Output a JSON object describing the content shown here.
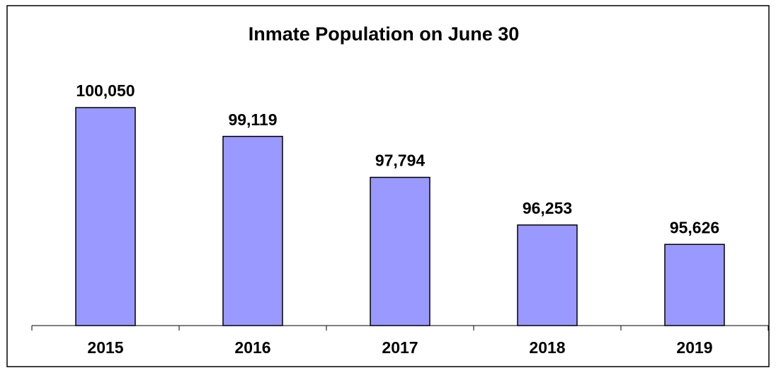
{
  "chart_data": {
    "type": "bar",
    "title": "Inmate Population on June 30",
    "categories": [
      "2015",
      "2016",
      "2017",
      "2018",
      "2019"
    ],
    "values": [
      100050,
      99119,
      97794,
      96253,
      95626
    ],
    "value_labels": [
      "100,050",
      "99,119",
      "97,794",
      "96,253",
      "95,626"
    ],
    "color": "#9999ff",
    "ylim": [
      93000,
      101000
    ]
  }
}
